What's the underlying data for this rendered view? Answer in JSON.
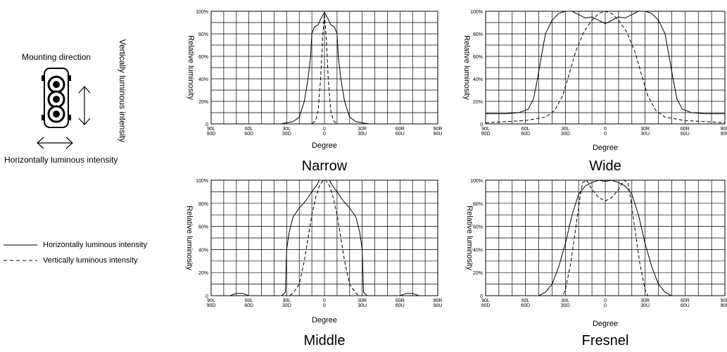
{
  "device": {
    "mounting_label": "Mounting direction",
    "vertical_label": "Vertically luminous intensity",
    "horizontal_label": "Horizontally luminous intensity",
    "icon": "lamp-device-icon"
  },
  "legend": {
    "horizontal": "Horizontally luminous intensity",
    "vertical": "Vertically luminous intensity"
  },
  "chart_data": [
    {
      "type": "line",
      "title": "Narrow",
      "xlabel": "Degree",
      "ylabel": "Relative luminosity",
      "xlim": [
        -90,
        90
      ],
      "ylim": [
        0,
        100
      ],
      "grid": true,
      "x_ticks": [
        "90L\n90D",
        "60L\n60D",
        "30L\n30D",
        "0\n0",
        "30R\n30U",
        "60R\n60U",
        "90R\n90U"
      ],
      "y_ticks": [
        "0",
        "20%",
        "40%",
        "60%",
        "80%",
        "100%"
      ],
      "series": [
        {
          "style": "solid",
          "points": [
            [
              -90,
              0
            ],
            [
              -60,
              0
            ],
            [
              -35,
              0
            ],
            [
              -30,
              1
            ],
            [
              -25,
              2
            ],
            [
              -20,
              6
            ],
            [
              -16,
              20
            ],
            [
              -13,
              40
            ],
            [
              -11,
              60
            ],
            [
              -10,
              80
            ],
            [
              -8,
              86
            ],
            [
              -5,
              88
            ],
            [
              -3,
              93
            ],
            [
              0,
              99
            ],
            [
              3,
              93
            ],
            [
              5,
              88
            ],
            [
              8,
              86
            ],
            [
              10,
              80
            ],
            [
              11,
              60
            ],
            [
              13,
              40
            ],
            [
              16,
              20
            ],
            [
              20,
              6
            ],
            [
              25,
              2
            ],
            [
              30,
              1
            ],
            [
              35,
              0
            ],
            [
              60,
              0
            ],
            [
              90,
              0
            ]
          ]
        },
        {
          "style": "dashed",
          "points": [
            [
              -90,
              0
            ],
            [
              -10,
              0
            ],
            [
              -7,
              3
            ],
            [
              -5,
              12
            ],
            [
              -3,
              40
            ],
            [
              -1.5,
              75
            ],
            [
              0,
              98
            ],
            [
              1.5,
              75
            ],
            [
              3,
              40
            ],
            [
              5,
              12
            ],
            [
              7,
              3
            ],
            [
              10,
              0
            ],
            [
              90,
              0
            ]
          ]
        }
      ]
    },
    {
      "type": "line",
      "title": "Wide",
      "xlabel": "Degree",
      "ylabel": "Relative luminosity",
      "xlim": [
        -90,
        90
      ],
      "ylim": [
        0,
        100
      ],
      "grid": true,
      "x_ticks": [
        "90L\n90D",
        "60L\n60D",
        "30L\n30D",
        "0\n0",
        "30R\n30U",
        "60R\n60U",
        "90R\n90U"
      ],
      "y_ticks": [
        "0",
        "20%",
        "40%",
        "60%",
        "80%",
        "100%"
      ],
      "series": [
        {
          "style": "solid",
          "points": [
            [
              -90,
              9
            ],
            [
              -75,
              9
            ],
            [
              -65,
              10
            ],
            [
              -58,
              13
            ],
            [
              -54,
              22
            ],
            [
              -51,
              40
            ],
            [
              -48,
              60
            ],
            [
              -45,
              80
            ],
            [
              -40,
              92
            ],
            [
              -35,
              98
            ],
            [
              -30,
              100
            ],
            [
              -25,
              100
            ],
            [
              -20,
              97
            ],
            [
              -15,
              94
            ],
            [
              -10,
              95
            ],
            [
              -5,
              92
            ],
            [
              0,
              89
            ],
            [
              5,
              92
            ],
            [
              10,
              95
            ],
            [
              15,
              94
            ],
            [
              20,
              97
            ],
            [
              25,
              100
            ],
            [
              30,
              100
            ],
            [
              35,
              98
            ],
            [
              40,
              92
            ],
            [
              45,
              80
            ],
            [
              48,
              60
            ],
            [
              51,
              40
            ],
            [
              54,
              22
            ],
            [
              58,
              13
            ],
            [
              65,
              10
            ],
            [
              75,
              9
            ],
            [
              90,
              9
            ]
          ]
        },
        {
          "style": "dashed",
          "points": [
            [
              -90,
              1
            ],
            [
              -60,
              3
            ],
            [
              -45,
              6
            ],
            [
              -38,
              12
            ],
            [
              -32,
              25
            ],
            [
              -27,
              45
            ],
            [
              -22,
              65
            ],
            [
              -16,
              82
            ],
            [
              -10,
              92
            ],
            [
              -5,
              98
            ],
            [
              0,
              100
            ],
            [
              5,
              98
            ],
            [
              10,
              92
            ],
            [
              16,
              82
            ],
            [
              22,
              65
            ],
            [
              27,
              45
            ],
            [
              32,
              25
            ],
            [
              38,
              12
            ],
            [
              45,
              6
            ],
            [
              60,
              3
            ],
            [
              90,
              1
            ]
          ]
        }
      ]
    },
    {
      "type": "line",
      "title": "Middle",
      "xlabel": "Degree",
      "ylabel": "Relative luminosity",
      "xlim": [
        -90,
        90
      ],
      "ylim": [
        0,
        100
      ],
      "grid": true,
      "x_ticks": [
        "90L\n90D",
        "60L\n60D",
        "30L\n30D",
        "0\n0",
        "30R\n30U",
        "60R\n60U",
        "90R\n90U"
      ],
      "y_ticks": [
        "0",
        "20%",
        "40%",
        "60%",
        "80%",
        "100%"
      ],
      "series": [
        {
          "style": "solid",
          "points": [
            [
              -90,
              0
            ],
            [
              -75,
              0
            ],
            [
              -70,
              2
            ],
            [
              -65,
              2
            ],
            [
              -60,
              0
            ],
            [
              -34,
              0
            ],
            [
              -31,
              3
            ],
            [
              -30,
              40
            ],
            [
              -28,
              55
            ],
            [
              -25,
              68
            ],
            [
              -20,
              76
            ],
            [
              -15,
              82
            ],
            [
              -10,
              90
            ],
            [
              -6,
              96
            ],
            [
              -4,
              100
            ],
            [
              4,
              100
            ],
            [
              6,
              96
            ],
            [
              10,
              90
            ],
            [
              15,
              82
            ],
            [
              20,
              76
            ],
            [
              25,
              68
            ],
            [
              28,
              55
            ],
            [
              30,
              40
            ],
            [
              31,
              3
            ],
            [
              34,
              0
            ],
            [
              60,
              0
            ],
            [
              65,
              2
            ],
            [
              70,
              2
            ],
            [
              75,
              0
            ],
            [
              90,
              0
            ]
          ]
        },
        {
          "style": "dashed",
          "points": [
            [
              -90,
              0
            ],
            [
              -28,
              0
            ],
            [
              -25,
              2
            ],
            [
              -20,
              10
            ],
            [
              -16,
              30
            ],
            [
              -13,
              50
            ],
            [
              -10,
              70
            ],
            [
              -7,
              85
            ],
            [
              -4,
              95
            ],
            [
              -1,
              100
            ],
            [
              1,
              100
            ],
            [
              4,
              95
            ],
            [
              7,
              85
            ],
            [
              10,
              70
            ],
            [
              13,
              50
            ],
            [
              16,
              30
            ],
            [
              20,
              10
            ],
            [
              25,
              2
            ],
            [
              28,
              0
            ],
            [
              90,
              0
            ]
          ]
        }
      ]
    },
    {
      "type": "line",
      "title": "Fresnel",
      "xlabel": "Degree",
      "ylabel": "Relative luminosity",
      "xlim": [
        -90,
        90
      ],
      "ylim": [
        0,
        100
      ],
      "grid": true,
      "x_ticks": [
        "90L\n90D",
        "60L\n60D",
        "30L\n30D",
        "0\n0",
        "30R\n30U",
        "60R\n60U",
        "90R\n90U"
      ],
      "y_ticks": [
        "0",
        "20%",
        "40%",
        "60%",
        "80%",
        "100%"
      ],
      "series": [
        {
          "style": "solid",
          "points": [
            [
              -90,
              0
            ],
            [
              -50,
              0
            ],
            [
              -45,
              3
            ],
            [
              -40,
              10
            ],
            [
              -35,
              25
            ],
            [
              -30,
              45
            ],
            [
              -25,
              70
            ],
            [
              -20,
              88
            ],
            [
              -15,
              95
            ],
            [
              -10,
              98
            ],
            [
              -5,
              100
            ],
            [
              0,
              99
            ],
            [
              5,
              100
            ],
            [
              10,
              98
            ],
            [
              15,
              95
            ],
            [
              20,
              88
            ],
            [
              25,
              70
            ],
            [
              30,
              45
            ],
            [
              35,
              25
            ],
            [
              40,
              10
            ],
            [
              45,
              3
            ],
            [
              50,
              0
            ],
            [
              90,
              0
            ]
          ]
        },
        {
          "style": "dashed",
          "points": [
            [
              -90,
              0
            ],
            [
              -32,
              0
            ],
            [
              -30,
              5
            ],
            [
              -26,
              28
            ],
            [
              -22,
              60
            ],
            [
              -19,
              85
            ],
            [
              -17,
              98
            ],
            [
              -14,
              100
            ],
            [
              -10,
              92
            ],
            [
              -5,
              85
            ],
            [
              0,
              82
            ],
            [
              5,
              85
            ],
            [
              10,
              92
            ],
            [
              14,
              100
            ],
            [
              17,
              98
            ],
            [
              19,
              85
            ],
            [
              22,
              60
            ],
            [
              26,
              28
            ],
            [
              30,
              5
            ],
            [
              32,
              0
            ],
            [
              90,
              0
            ]
          ]
        }
      ]
    }
  ]
}
